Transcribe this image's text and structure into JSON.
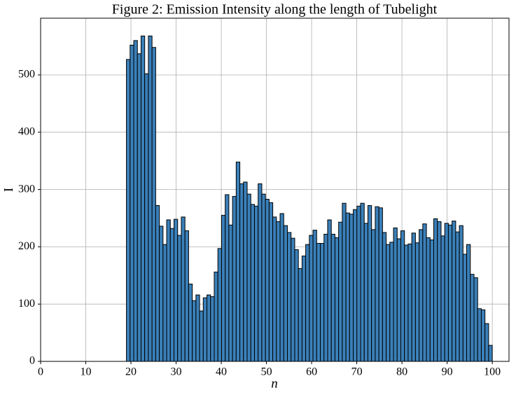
{
  "chart_data": {
    "type": "histogram",
    "title": "Figure 2: Emission Intensity along the length of Tubelight",
    "xlabel": "n",
    "ylabel": "I",
    "bins": [
      19,
      19.81,
      20.62,
      21.43,
      22.24,
      23.05,
      23.86,
      24.67,
      25.48,
      26.29,
      27.1,
      27.91,
      28.72,
      29.53,
      30.34,
      31.15,
      31.96,
      32.77,
      33.58,
      34.39,
      35.2,
      36.01,
      36.82,
      37.63,
      38.44,
      39.25,
      40.06,
      40.87,
      41.68,
      42.49,
      43.3,
      44.11,
      44.92,
      45.73,
      46.54,
      47.35,
      48.16,
      48.97,
      49.78,
      50.59,
      51.4,
      52.21,
      53.02,
      53.83,
      54.64,
      55.45,
      56.26,
      57.07,
      57.88,
      58.69,
      59.5,
      60.31,
      61.12,
      61.93,
      62.74,
      63.55,
      64.36,
      65.17,
      65.98,
      66.79,
      67.6,
      68.41,
      69.22,
      70.03,
      70.84,
      71.65,
      72.46,
      73.27,
      74.08,
      74.89,
      75.7,
      76.51,
      77.32,
      78.13,
      78.94,
      79.75,
      80.56,
      81.37,
      82.18,
      82.99,
      83.8,
      84.61,
      85.42,
      86.23,
      87.04,
      87.85,
      88.66,
      89.47,
      90.28,
      91.09,
      91.9,
      92.71,
      93.52,
      94.33,
      95.14,
      95.95,
      96.76,
      97.57,
      98.38,
      99.19,
      100
    ],
    "values": [
      527,
      552,
      560,
      537,
      568,
      502,
      568,
      548,
      272,
      236,
      204,
      247,
      232,
      248,
      220,
      252,
      228,
      135,
      106,
      116,
      88,
      111,
      116,
      113,
      156,
      197,
      255,
      291,
      238,
      288,
      348,
      310,
      313,
      292,
      274,
      271,
      310,
      292,
      283,
      277,
      252,
      244,
      258,
      237,
      225,
      215,
      195,
      162,
      184,
      204,
      220,
      229,
      206,
      206,
      222,
      247,
      222,
      216,
      243,
      276,
      259,
      257,
      265,
      271,
      276,
      241,
      272,
      230,
      270,
      268,
      225,
      204,
      208,
      233,
      214,
      228,
      203,
      205,
      224,
      207,
      230,
      240,
      216,
      212,
      249,
      244,
      219,
      241,
      238,
      245,
      226,
      237,
      187,
      204,
      152,
      146,
      92,
      90,
      66,
      28
    ],
    "color": "#3b80b9",
    "edgecolor": "#000000",
    "xlim": [
      0,
      103.7
    ],
    "ylim": [
      0,
      599
    ],
    "xticks": [
      0,
      10,
      20,
      30,
      40,
      50,
      60,
      70,
      80,
      90,
      100
    ],
    "yticks": [
      0,
      100,
      200,
      300,
      400,
      500
    ],
    "grid": true
  }
}
